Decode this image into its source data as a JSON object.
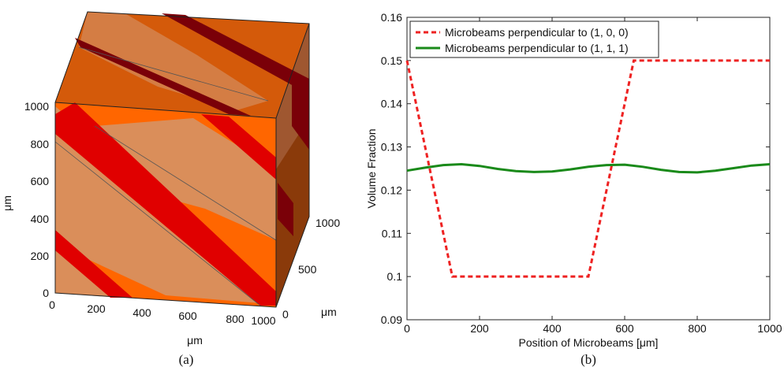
{
  "panel_a": {
    "caption": "(a)",
    "z_label": "μm",
    "x_label": "μm",
    "y_label": "μm",
    "z_ticks": [
      "0",
      "200",
      "400",
      "600",
      "800",
      "1000"
    ],
    "x_ticks": [
      "0",
      "200",
      "400",
      "600",
      "800",
      "1000"
    ],
    "y_ticks": [
      "0",
      "500",
      "1000"
    ],
    "colors": {
      "block": "#ff6600",
      "top": "#d45a0a",
      "side": "#8a3a0a",
      "band": "#e00000",
      "band_dark": "#7a0008",
      "plane": "#d4956a"
    }
  },
  "panel_b": {
    "caption": "(b)"
  },
  "chart_data": {
    "type": "line",
    "title": "",
    "xlabel": "Position of Microbeams [μm]",
    "ylabel": "Volume Fraction",
    "xlim": [
      0,
      1000
    ],
    "ylim": [
      0.09,
      0.16
    ],
    "x_ticks": [
      0,
      200,
      400,
      600,
      800,
      1000
    ],
    "y_ticks": [
      0.09,
      0.1,
      0.11,
      0.12,
      0.13,
      0.14,
      0.15,
      0.16
    ],
    "grid": false,
    "legend": "top-left",
    "series": [
      {
        "name": "Microbeams perpendicular to (1, 0, 0)",
        "color": "#ee2222",
        "style": "dashed",
        "x": [
          0,
          125,
          500,
          625,
          1000
        ],
        "y": [
          0.15,
          0.1,
          0.1,
          0.15,
          0.15
        ]
      },
      {
        "name": "Microbeams perpendicular to (1, 1, 1)",
        "color": "#1a8a1a",
        "style": "solid",
        "x": [
          0,
          50,
          100,
          150,
          200,
          250,
          300,
          350,
          400,
          450,
          500,
          550,
          600,
          650,
          700,
          750,
          800,
          850,
          900,
          950,
          1000
        ],
        "y": [
          0.1245,
          0.1252,
          0.1258,
          0.126,
          0.1256,
          0.1249,
          0.1244,
          0.1242,
          0.1243,
          0.1248,
          0.1254,
          0.1258,
          0.1259,
          0.1254,
          0.1247,
          0.1242,
          0.1241,
          0.1245,
          0.1251,
          0.1257,
          0.126
        ]
      }
    ]
  }
}
